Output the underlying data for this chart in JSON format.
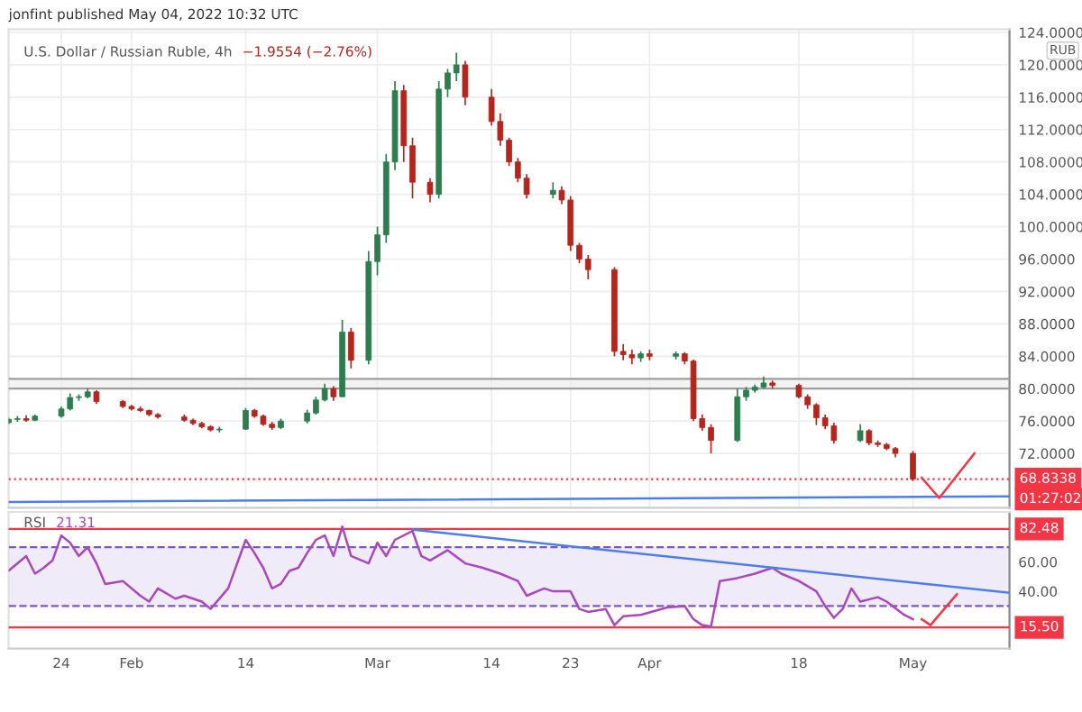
{
  "chart_data": [
    {
      "type": "candlestick",
      "title": "U.S. Dollar / Russian Ruble, 4h",
      "subtitle": "−1.9554 (−2.76%)",
      "ylabel": "RUB",
      "annotations": [
        "01:27:02",
        "jonfint published May 04, 2022 10:32 UTC"
      ],
      "colors": [
        "#2e7d4f",
        "#2e7d4f",
        "#b3261e",
        "#2e7d4f",
        "#2e7d4f",
        "#2e7d4f",
        "#2e7d4f",
        "#2e7d4f",
        "#b3261e",
        "#b3261e",
        "#b3261e",
        "#b3261e",
        "#b3261e",
        "#b3261e",
        "#b3261e",
        "#b3261e",
        "#b3261e",
        "#b3261e",
        "#2e7d4f",
        "#2e7d4f",
        "#b3261e",
        "#b3261e",
        "#b3261e",
        "#2e7d4f",
        "#2e7d4f",
        "#2e7d4f",
        "#2e7d4f",
        "#b3261e",
        "#2e7d4f",
        "#b3261e",
        "#2e7d4f",
        "#2e7d4f",
        "#2e7d4f",
        "#2e7d4f",
        "#b3261e",
        "#b3261e",
        "#b3261e",
        "#2e7d4f",
        "#2e7d4f",
        "#2e7d4f",
        "#b3261e",
        "#b3261e",
        "#b3261e",
        "#b3261e",
        "#b3261e",
        "#b3261e",
        "#2e7d4f",
        "#b3261e",
        "#b3261e",
        "#b3261e",
        "#b3261e",
        "#b3261e",
        "#b3261e",
        "#b3261e",
        "#2e7d4f",
        "#b3261e",
        "#2e7d4f",
        "#b3261e",
        "#b3261e",
        "#b3261e",
        "#b3261e",
        "#2e7d4f",
        "#2e7d4f",
        "#2e7d4f",
        "#2e7d4f",
        "#b3261e",
        "#b3261e",
        "#b3261e",
        "#b3261e",
        "#b3261e",
        "#b3261e",
        "#2e7d4f",
        "#b3261e",
        "#b3261e",
        "#b3261e",
        "#b3261e",
        "#b3261e"
      ],
      "x": [
        "2022-01-18",
        "2022-01-19",
        "2022-01-20",
        "2022-01-21",
        "2022-01-24",
        "2022-01-25",
        "2022-01-26",
        "2022-01-27",
        "2022-01-28",
        "2022-01-31",
        "2022-02-01",
        "2022-02-02",
        "2022-02-03",
        "2022-02-04",
        "2022-02-07",
        "2022-02-08",
        "2022-02-09",
        "2022-02-10",
        "2022-02-11",
        "2022-02-14",
        "2022-02-15",
        "2022-02-16",
        "2022-02-17",
        "2022-02-18",
        "2022-02-21",
        "2022-02-22",
        "2022-02-23",
        "2022-02-24",
        "2022-02-25",
        "2022-02-26",
        "2022-02-28",
        "2022-03-01",
        "2022-03-02",
        "2022-03-03",
        "2022-03-04",
        "2022-03-05",
        "2022-03-07",
        "2022-03-08",
        "2022-03-09",
        "2022-03-10",
        "2022-03-11",
        "2022-03-14",
        "2022-03-15",
        "2022-03-16",
        "2022-03-17",
        "2022-03-18",
        "2022-03-21",
        "2022-03-22",
        "2022-03-23",
        "2022-03-24",
        "2022-03-25",
        "2022-03-28",
        "2022-03-29",
        "2022-03-30",
        "2022-03-31",
        "2022-04-01",
        "2022-04-04",
        "2022-04-05",
        "2022-04-06",
        "2022-04-07",
        "2022-04-08",
        "2022-04-11",
        "2022-04-12",
        "2022-04-13",
        "2022-04-14",
        "2022-04-15",
        "2022-04-18",
        "2022-04-19",
        "2022-04-20",
        "2022-04-21",
        "2022-04-22",
        "2022-04-25",
        "2022-04-26",
        "2022-04-27",
        "2022-04-28",
        "2022-04-29",
        "2022-05-01"
      ],
      "ohlc": [
        [
          75.8,
          76.4,
          75.6,
          76.2
        ],
        [
          76.2,
          76.6,
          75.9,
          76.3
        ],
        [
          76.3,
          76.7,
          75.9,
          76.1
        ],
        [
          76.1,
          76.8,
          76.0,
          76.6
        ],
        [
          76.6,
          77.8,
          76.4,
          77.5
        ],
        [
          77.5,
          79.4,
          77.3,
          78.9
        ],
        [
          78.9,
          79.3,
          78.5,
          79.0
        ],
        [
          79.0,
          80.0,
          78.8,
          79.6
        ],
        [
          79.6,
          79.8,
          78.1,
          78.4
        ],
        [
          78.4,
          78.6,
          77.6,
          77.8
        ],
        [
          77.8,
          78.0,
          77.3,
          77.5
        ],
        [
          77.5,
          77.8,
          77.1,
          77.3
        ],
        [
          77.3,
          77.4,
          76.6,
          76.8
        ],
        [
          76.8,
          77.0,
          76.3,
          76.5
        ],
        [
          76.5,
          76.8,
          75.9,
          76.1
        ],
        [
          76.1,
          76.3,
          75.5,
          75.7
        ],
        [
          75.7,
          75.9,
          75.1,
          75.3
        ],
        [
          75.3,
          75.5,
          74.7,
          74.9
        ],
        [
          74.9,
          75.3,
          74.6,
          75.0
        ],
        [
          75.0,
          77.6,
          74.9,
          77.3
        ],
        [
          77.3,
          77.5,
          76.4,
          76.6
        ],
        [
          76.6,
          76.8,
          75.4,
          75.6
        ],
        [
          75.6,
          75.9,
          74.9,
          75.2
        ],
        [
          75.2,
          76.3,
          75.0,
          76.0
        ],
        [
          76.0,
          77.4,
          75.7,
          77.0
        ],
        [
          77.0,
          79.0,
          76.8,
          78.6
        ],
        [
          78.6,
          80.6,
          78.4,
          80.0
        ],
        [
          80.0,
          80.3,
          78.5,
          79.0
        ],
        [
          79.0,
          88.5,
          79.0,
          87.0
        ],
        [
          87.0,
          87.5,
          82.5,
          83.5
        ],
        [
          83.5,
          97.0,
          83.0,
          95.7
        ],
        [
          95.7,
          100.0,
          94.0,
          99.0
        ],
        [
          99.0,
          109.0,
          98.0,
          108.0
        ],
        [
          108.0,
          118.0,
          107.0,
          116.8
        ],
        [
          116.8,
          117.5,
          108.0,
          110.0
        ],
        [
          110.0,
          111.0,
          103.5,
          105.5
        ],
        [
          105.5,
          106.0,
          103.0,
          104.0
        ],
        [
          104.0,
          118.0,
          103.5,
          117.0
        ],
        [
          117.0,
          119.5,
          116.0,
          119.0
        ],
        [
          119.0,
          121.5,
          118.0,
          120.0
        ],
        [
          120.0,
          120.5,
          115.0,
          116.0
        ],
        [
          116.0,
          117.0,
          112.5,
          113.0
        ],
        [
          113.0,
          114.0,
          110.0,
          110.7
        ],
        [
          110.7,
          111.0,
          107.5,
          108.0
        ],
        [
          108.0,
          108.5,
          105.5,
          106.0
        ],
        [
          106.0,
          106.5,
          103.5,
          104.0
        ],
        [
          104.0,
          105.5,
          103.5,
          104.5
        ],
        [
          104.5,
          105.0,
          102.8,
          103.3
        ],
        [
          103.3,
          103.8,
          97.0,
          97.7
        ],
        [
          97.7,
          98.0,
          95.5,
          96.0
        ],
        [
          96.0,
          96.5,
          93.5,
          94.7
        ],
        [
          94.7,
          95.0,
          84.0,
          84.6
        ],
        [
          84.6,
          85.5,
          83.5,
          84.2
        ],
        [
          84.2,
          84.8,
          83.0,
          83.8
        ],
        [
          83.8,
          84.6,
          83.3,
          84.3
        ],
        [
          84.3,
          84.8,
          83.5,
          84.0
        ],
        [
          84.0,
          84.6,
          83.6,
          84.3
        ],
        [
          84.3,
          84.5,
          83.0,
          83.4
        ],
        [
          83.4,
          83.6,
          76.0,
          76.3
        ],
        [
          76.3,
          76.8,
          74.8,
          75.2
        ],
        [
          75.2,
          75.6,
          72.0,
          73.6
        ],
        [
          73.6,
          80.0,
          73.4,
          79.0
        ],
        [
          79.0,
          80.2,
          78.5,
          79.8
        ],
        [
          79.8,
          80.5,
          79.5,
          80.2
        ],
        [
          80.2,
          81.5,
          80.0,
          80.7
        ],
        [
          80.7,
          81.0,
          80.0,
          80.4
        ],
        [
          80.4,
          80.6,
          78.8,
          79.0
        ],
        [
          79.0,
          79.3,
          77.5,
          78.0
        ],
        [
          78.0,
          78.2,
          75.5,
          76.4
        ],
        [
          76.4,
          76.8,
          75.0,
          75.4
        ],
        [
          75.4,
          75.8,
          73.2,
          73.6
        ],
        [
          73.6,
          75.6,
          73.4,
          74.8
        ],
        [
          74.8,
          75.0,
          73.0,
          73.3
        ],
        [
          73.3,
          73.6,
          72.8,
          73.1
        ],
        [
          73.1,
          73.3,
          72.4,
          72.6
        ],
        [
          72.6,
          72.8,
          71.5,
          72.0
        ],
        [
          72.0,
          72.3,
          68.6,
          68.83
        ]
      ],
      "series": [
        {
          "type": "line",
          "color": "#4d7ee8",
          "x": [
            "2022-01-18",
            "2022-05-12"
          ],
          "values": [
            66.0,
            66.7
          ]
        },
        {
          "type": "line",
          "color": "#f23645",
          "x": [
            "2022-05-02",
            "2022-05-04",
            "2022-05-08"
          ],
          "values": [
            69.0,
            66.5,
            72.0
          ]
        }
      ],
      "bands": [
        {
          "axis": "y",
          "from": 80.0,
          "to": 81.2,
          "color": "#9e9e9e"
        }
      ],
      "ref_lines": [
        {
          "axis": "y",
          "value": 80.0,
          "color": "#9e9e9e"
        },
        {
          "axis": "y",
          "value": 81.2,
          "color": "#9e9e9e"
        },
        {
          "axis": "y",
          "value": 68.8338,
          "label": "68.8338",
          "color": "#f23645",
          "line_style": "dotted"
        }
      ],
      "xlim": [
        "2022-01-18",
        "2022-05-12"
      ],
      "xticks": [
        {
          "value": "2022-01-24",
          "label": null
        },
        {
          "value": "2022-02-01",
          "label": null
        },
        {
          "value": "2022-02-14",
          "label": null
        },
        {
          "value": "2022-03-01",
          "label": null
        },
        {
          "value": "2022-03-14",
          "label": null
        },
        {
          "value": "2022-03-23",
          "label": null
        },
        {
          "value": "2022-04-01",
          "label": null
        },
        {
          "value": "2022-04-18",
          "label": null
        },
        {
          "value": "2022-05-01",
          "label": null
        }
      ],
      "ylim": [
        65.3,
        124.4
      ],
      "yticks": [
        {
          "value": 72,
          "label": "72.0000"
        },
        {
          "value": 76,
          "label": "76.0000"
        },
        {
          "value": 80,
          "label": "80.0000"
        },
        {
          "value": 84,
          "label": "84.0000"
        },
        {
          "value": 88,
          "label": "88.0000"
        },
        {
          "value": 92,
          "label": "92.0000"
        },
        {
          "value": 96,
          "label": "96.0000"
        },
        {
          "value": 100,
          "label": "100.0000"
        },
        {
          "value": 104,
          "label": "104.0000"
        },
        {
          "value": 108,
          "label": "108.0000"
        },
        {
          "value": 112,
          "label": "112.0000"
        },
        {
          "value": 116,
          "label": "116.0000"
        },
        {
          "value": 120,
          "label": "120.0000"
        },
        {
          "value": 124,
          "label": "124.0000"
        }
      ],
      "grid": true,
      "tick_labels": "y",
      "legend": false
    },
    {
      "type": "line",
      "title": "RSI",
      "subtitle": "21.31",
      "x": [
        "2022-01-18",
        "2022-01-20",
        "2022-01-21",
        "2022-01-22",
        "2022-01-23",
        "2022-01-24",
        "2022-01-25",
        "2022-01-26",
        "2022-01-27",
        "2022-01-28",
        "2022-01-29",
        "2022-01-31",
        "2022-02-02",
        "2022-02-03",
        "2022-02-04",
        "2022-02-06",
        "2022-02-07",
        "2022-02-09",
        "2022-02-10",
        "2022-02-12",
        "2022-02-14",
        "2022-02-15",
        "2022-02-16",
        "2022-02-17",
        "2022-02-18",
        "2022-02-19",
        "2022-02-20",
        "2022-02-21",
        "2022-02-22",
        "2022-02-23",
        "2022-02-24",
        "2022-02-25",
        "2022-02-26",
        "2022-02-28",
        "2022-03-01",
        "2022-03-02",
        "2022-03-03",
        "2022-03-05",
        "2022-03-06",
        "2022-03-07",
        "2022-03-09",
        "2022-03-11",
        "2022-03-13",
        "2022-03-15",
        "2022-03-17",
        "2022-03-18",
        "2022-03-20",
        "2022-03-21",
        "2022-03-23",
        "2022-03-24",
        "2022-03-25",
        "2022-03-27",
        "2022-03-28",
        "2022-03-29",
        "2022-03-31",
        "2022-04-03",
        "2022-04-05",
        "2022-04-06",
        "2022-04-07",
        "2022-04-08",
        "2022-04-09",
        "2022-04-11",
        "2022-04-13",
        "2022-04-15",
        "2022-04-16",
        "2022-04-18",
        "2022-04-20",
        "2022-04-21",
        "2022-04-22",
        "2022-04-23",
        "2022-04-24",
        "2022-04-25",
        "2022-04-27",
        "2022-04-28",
        "2022-04-30",
        "2022-05-01"
      ],
      "series": [
        {
          "color": "#ab47bc",
          "values": [
            54,
            64,
            52,
            56,
            61,
            78,
            73,
            64,
            70,
            59,
            45,
            47,
            37,
            33,
            42,
            35,
            37,
            33,
            28,
            42,
            75,
            66,
            56,
            42,
            45,
            54,
            56,
            66,
            75,
            78,
            64,
            84,
            64,
            59,
            73,
            64,
            75,
            81,
            64,
            61,
            68,
            59,
            56,
            52,
            47,
            37,
            42,
            40,
            40,
            28,
            26,
            28,
            17,
            23,
            24,
            29,
            30,
            21,
            17,
            16,
            47,
            49,
            52,
            56,
            52,
            47,
            40,
            30,
            22,
            28,
            42,
            33,
            36,
            33,
            24,
            21
          ]
        },
        {
          "type": "line",
          "color": "#4d7ee8",
          "x": [
            "2022-03-05",
            "2022-05-12"
          ],
          "values": [
            82,
            39
          ]
        },
        {
          "type": "line",
          "color": "#f23645",
          "x": [
            "2022-05-02",
            "2022-05-03",
            "2022-05-06"
          ],
          "values": [
            21,
            17,
            38
          ]
        }
      ],
      "bands": [
        {
          "axis": "y",
          "from": 30,
          "to": 70,
          "color": "#7e57c2"
        }
      ],
      "ref_lines": [
        {
          "axis": "y",
          "value": 82.48,
          "label": "82.48",
          "color": "#f23645"
        },
        {
          "axis": "y",
          "value": 15.5,
          "label": "15.50",
          "color": "#f23645"
        },
        {
          "axis": "y",
          "value": 70,
          "color": "#7e57c2",
          "line_style": "dashed"
        },
        {
          "axis": "y",
          "value": 30,
          "color": "#7e57c2",
          "line_style": "dashed"
        }
      ],
      "xlim": [
        "2022-01-18",
        "2022-05-12"
      ],
      "xticks": [
        {
          "value": "2022-01-24",
          "label": "24"
        },
        {
          "value": "2022-02-01",
          "label": "Feb"
        },
        {
          "value": "2022-02-14",
          "label": "14"
        },
        {
          "value": "2022-03-01",
          "label": "Mar"
        },
        {
          "value": "2022-03-14",
          "label": "14"
        },
        {
          "value": "2022-03-23",
          "label": "23"
        },
        {
          "value": "2022-04-01",
          "label": "Apr"
        },
        {
          "value": "2022-04-18",
          "label": "18"
        },
        {
          "value": "2022-05-01",
          "label": "May"
        }
      ],
      "ylim": [
        1,
        94
      ],
      "yticks": [
        {
          "value": 40,
          "label": "40.00"
        },
        {
          "value": 60,
          "label": "60.00"
        }
      ],
      "grid": false,
      "legend": false
    }
  ]
}
